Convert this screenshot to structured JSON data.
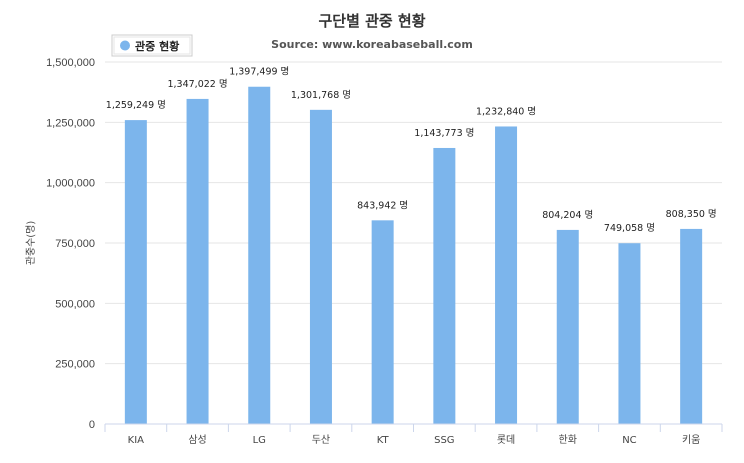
{
  "chart_data": {
    "type": "bar",
    "title": "구단별 관중 현황",
    "subtitle": "Source: www.koreabaseball.com",
    "ylabel": "관중수(명)",
    "xlabel": "",
    "ylim": [
      0,
      1500000
    ],
    "yticks": [
      0,
      250000,
      500000,
      750000,
      1000000,
      1250000,
      1500000
    ],
    "ytick_labels": [
      "0",
      "250,000",
      "500,000",
      "750,000",
      "1,000,000",
      "1,250,000",
      "1,500,000"
    ],
    "grid": true,
    "legend": {
      "placement": "top-left",
      "entries": [
        "관중 현황"
      ]
    },
    "categories": [
      "KIA",
      "삼성",
      "LG",
      "두산",
      "KT",
      "SSG",
      "롯데",
      "한화",
      "NC",
      "키움"
    ],
    "series": [
      {
        "name": "관중 현황",
        "color": "#7cb5ec",
        "values": [
          1259249,
          1347022,
          1397499,
          1301768,
          843942,
          1143773,
          1232840,
          804204,
          749058,
          808350
        ],
        "data_labels": [
          "1,259,249 명",
          "1,347,022 명",
          "1,397,499 명",
          "1,301,768 명",
          "843,942 명",
          "1,143,773 명",
          "1,232,840 명",
          "804,204 명",
          "749,058 명",
          "808,350 명"
        ]
      }
    ]
  }
}
